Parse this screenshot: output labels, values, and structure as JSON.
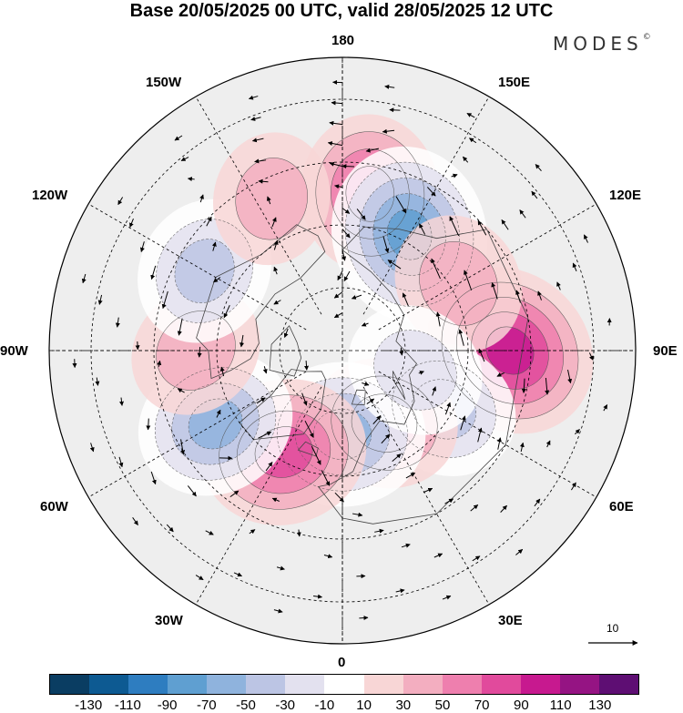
{
  "title": "Base 20/05/2025 00 UTC, valid 28/05/2025 12 UTC",
  "brand": "MODES",
  "brand_mark": "©",
  "map": {
    "projection": "north-polar-stereographic",
    "lon_labels": {
      "n": "180",
      "ne": "150E",
      "ene": "120E",
      "e": "90E",
      "ese": "60E",
      "se": "30E",
      "s": "0",
      "sw": "30W",
      "wsw": "60W",
      "w": "90W",
      "wnw": "120W",
      "nw": "150W"
    },
    "anomaly_cells": [
      {
        "lon": 170,
        "lat": 52,
        "value": 60
      },
      {
        "lon": 150,
        "lat": 58,
        "value": -85
      },
      {
        "lon": 90,
        "lat": 50,
        "value": 85
      },
      {
        "lon": 60,
        "lat": 62,
        "value": -45
      },
      {
        "lon": 30,
        "lat": 70,
        "value": 45
      },
      {
        "lon": 0,
        "lat": 70,
        "value": -70
      },
      {
        "lon": -30,
        "lat": 62,
        "value": 70
      },
      {
        "lon": -60,
        "lat": 55,
        "value": -60
      },
      {
        "lon": -90,
        "lat": 55,
        "value": 30
      },
      {
        "lon": -120,
        "lat": 52,
        "value": -45
      },
      {
        "lon": -155,
        "lat": 50,
        "value": 25
      },
      {
        "lon": 120,
        "lat": 58,
        "value": 35
      },
      {
        "lon": 75,
        "lat": 72,
        "value": -35
      }
    ]
  },
  "vector_reference": {
    "label": "10"
  },
  "colorbar": {
    "colors": [
      "#0a3d62",
      "#0d5a92",
      "#2e7dc0",
      "#5f9fd1",
      "#8fb3dd",
      "#bcc5e4",
      "#e3e1ef",
      "#ffffff",
      "#f8d6d6",
      "#f3aec0",
      "#ee7fae",
      "#e14a9c",
      "#c7198f",
      "#951483",
      "#5e0e73"
    ],
    "tick_labels": [
      "-130",
      "-110",
      "-90",
      "-70",
      "-50",
      "-30",
      "-10",
      "10",
      "30",
      "50",
      "70",
      "90",
      "110",
      "130"
    ]
  }
}
